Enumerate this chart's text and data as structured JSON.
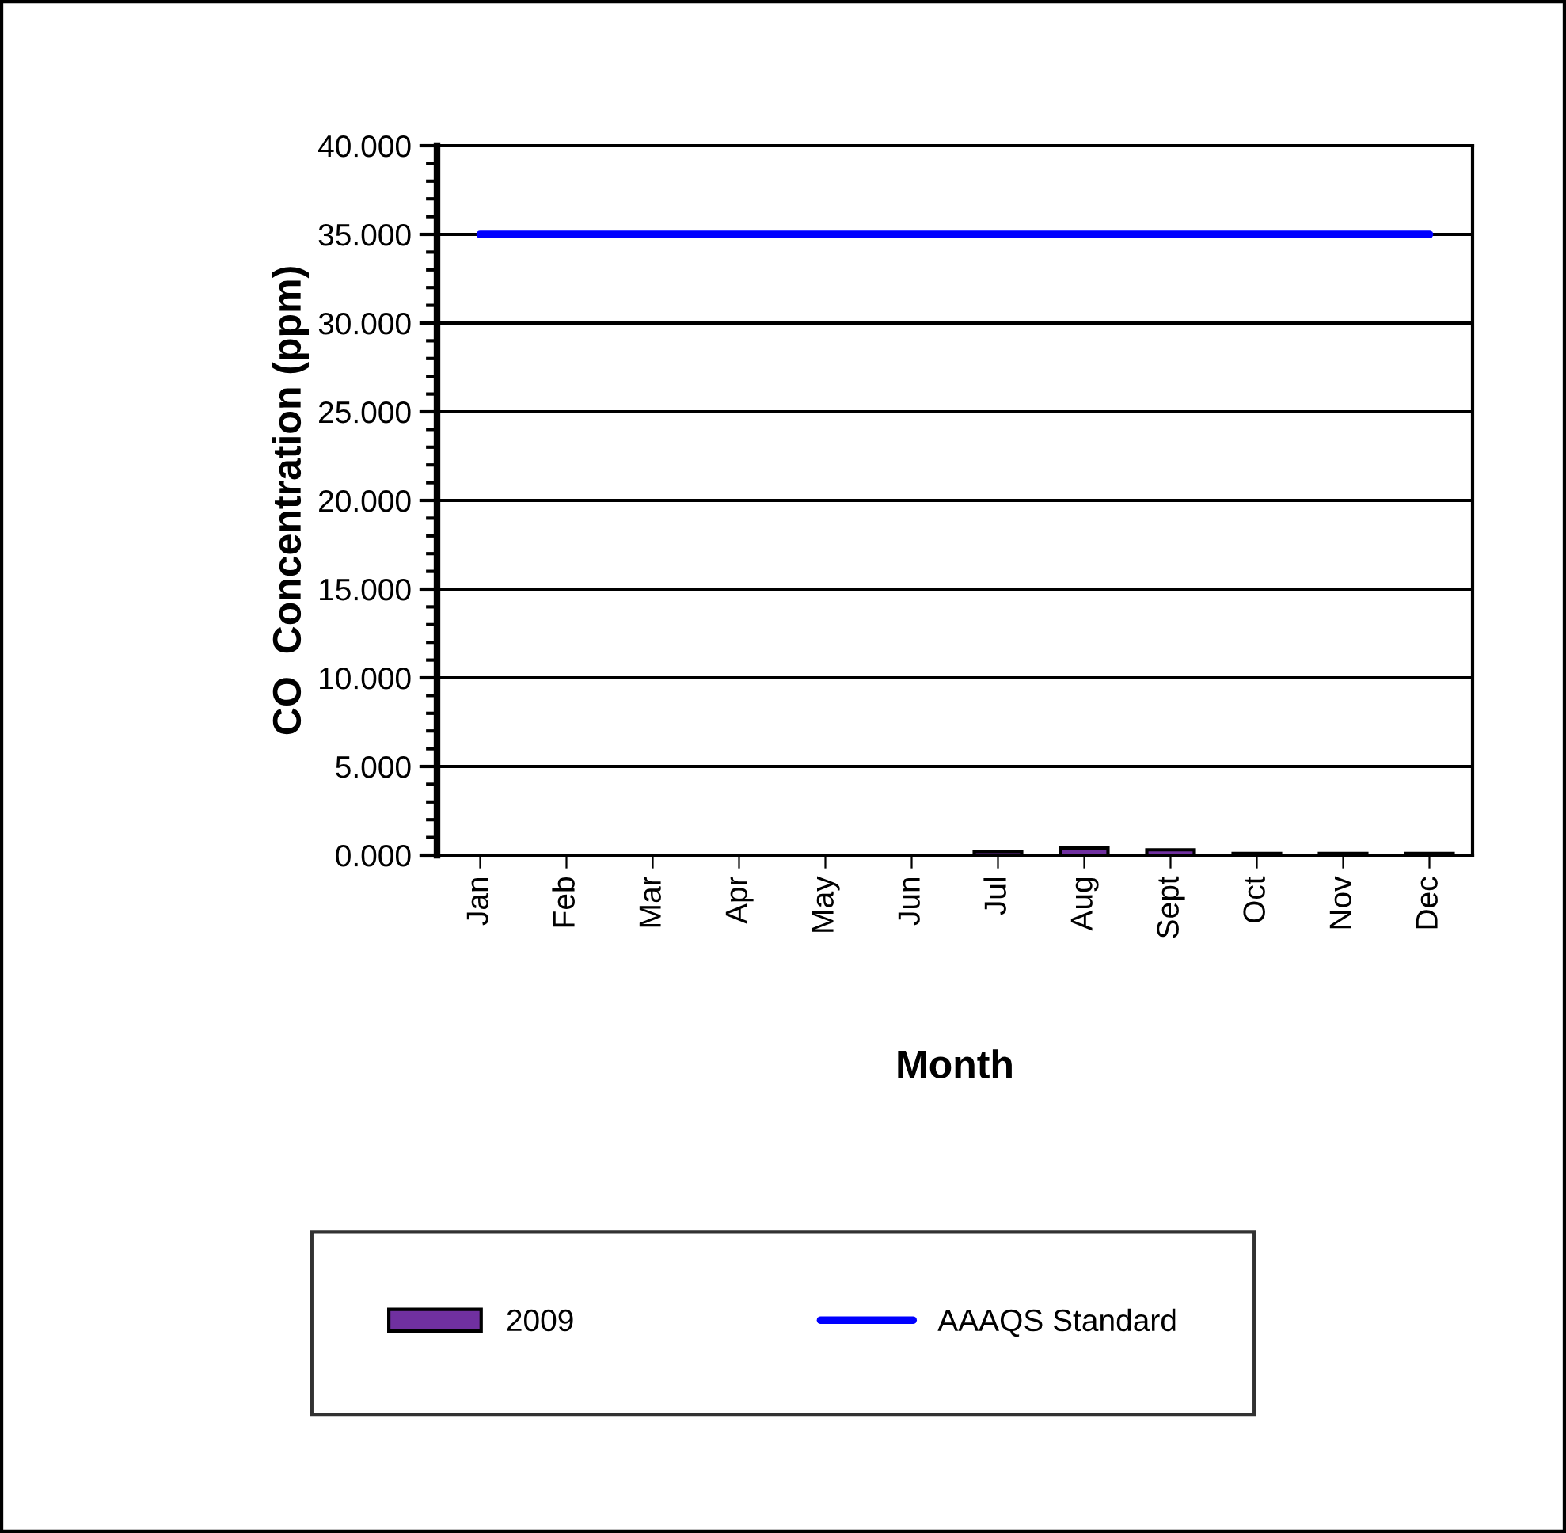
{
  "chart_data": {
    "type": "bar",
    "xlabel": "Month",
    "ylabel": "CO  Concentration (ppm)",
    "categories": [
      "Jan",
      "Feb",
      "Mar",
      "Apr",
      "May",
      "Jun",
      "Jul",
      "Aug",
      "Sept",
      "Oct",
      "Nov",
      "Dec"
    ],
    "series": [
      {
        "name": "2009",
        "color": "#7030a0",
        "values": [
          null,
          null,
          null,
          null,
          null,
          null,
          0.2,
          0.4,
          0.3,
          0.1,
          0.1,
          0.1
        ]
      },
      {
        "name": "AAAQS Standard",
        "type": "line",
        "color": "#0000ff",
        "values": [
          35,
          35,
          35,
          35,
          35,
          35,
          35,
          35,
          35,
          35,
          35,
          35
        ]
      }
    ],
    "ylim": [
      0,
      40
    ],
    "yticks": [
      {
        "value": 0,
        "label": "0.000"
      },
      {
        "value": 5,
        "label": "5.000"
      },
      {
        "value": 10,
        "label": "10.000"
      },
      {
        "value": 15,
        "label": "15.000"
      },
      {
        "value": 20,
        "label": "20.000"
      },
      {
        "value": 25,
        "label": "25.000"
      },
      {
        "value": 30,
        "label": "30.000"
      },
      {
        "value": 35,
        "label": "35.000"
      },
      {
        "value": 40,
        "label": "40.000"
      }
    ],
    "grid": "y",
    "legend": "bottom"
  }
}
